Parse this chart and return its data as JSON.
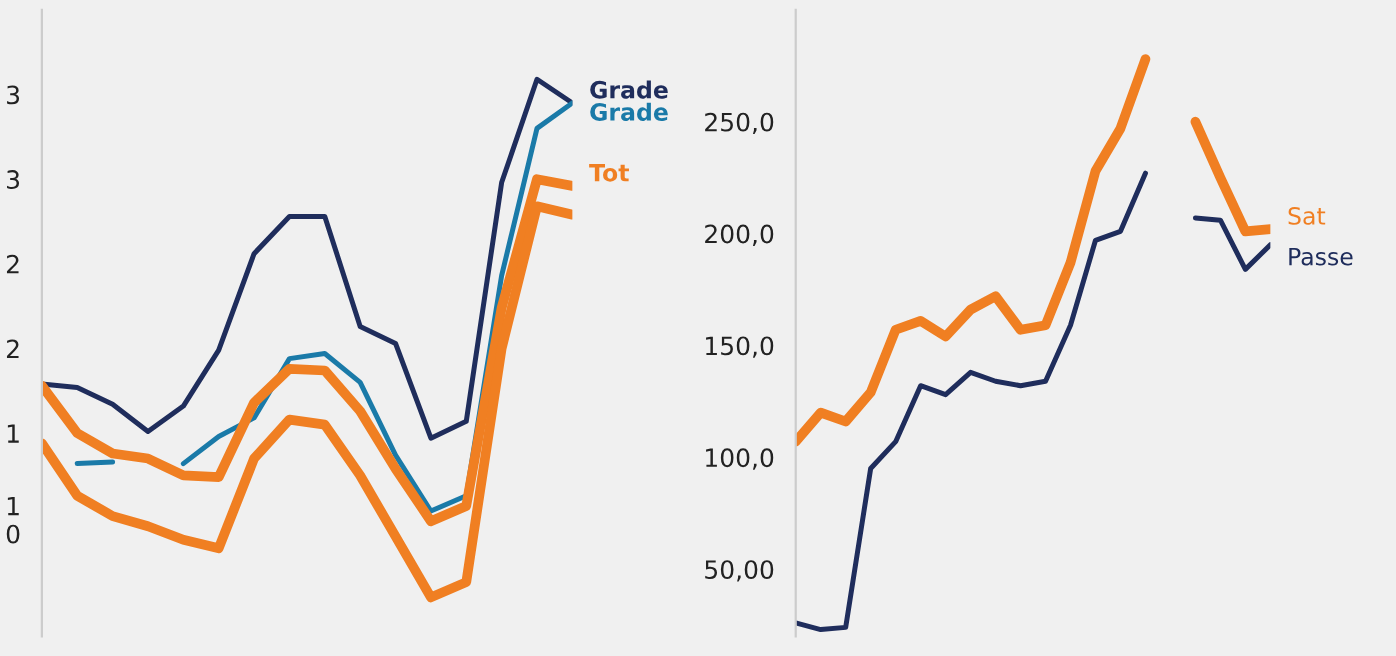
{
  "chart_data": [
    {
      "type": "line",
      "categories": [
        null,
        null,
        null,
        null,
        null,
        null,
        null,
        null,
        null,
        null,
        null,
        null,
        null,
        null,
        null,
        null
      ],
      "ylim": [
        0.3,
        4.0
      ],
      "yticks": [
        {
          "value": 3.5,
          "label": "3"
        },
        {
          "value": 3.0,
          "label": "3"
        },
        {
          "value": 2.5,
          "label": "2"
        },
        {
          "value": 2.0,
          "label": "2"
        },
        {
          "value": 1.5,
          "label": "1"
        },
        {
          "value": 1.0,
          "label": "1\n0"
        }
      ],
      "tick_labels": "y",
      "grid": false,
      "legend": false,
      "series": [
        {
          "name": "Grade",
          "color": "#1f2d5c",
          "values": [
            1.79,
            1.77,
            1.67,
            1.51,
            1.66,
            1.99,
            2.56,
            2.78,
            2.78,
            2.13,
            2.03,
            1.47,
            1.57,
            2.98,
            3.59,
            3.45
          ]
        },
        {
          "color": "#1a7aa8",
          "values": [
            null,
            1.32,
            1.33,
            null,
            null,
            null,
            null,
            null,
            null,
            null,
            null,
            null,
            null,
            null,
            null,
            null
          ]
        },
        {
          "name": "Grade",
          "color": "#1a7aa8",
          "values": [
            null,
            null,
            null,
            null,
            1.32,
            1.48,
            1.59,
            1.94,
            1.97,
            1.8,
            1.37,
            1.04,
            1.13,
            2.43,
            3.3,
            3.45
          ]
        },
        {
          "name": "Tot",
          "color": "#f07f22",
          "values": [
            1.78,
            1.5,
            1.38,
            1.35,
            1.25,
            1.24,
            1.68,
            1.88,
            1.87,
            1.63,
            1.29,
            0.98,
            1.07,
            2.24,
            3.0,
            2.96
          ]
        },
        {
          "color": "#f07f22",
          "values": [
            1.44,
            1.13,
            1.01,
            0.95,
            0.87,
            0.82,
            1.35,
            1.58,
            1.55,
            1.25,
            0.89,
            0.53,
            0.62,
            2.0,
            2.84,
            2.79
          ]
        }
      ]
    },
    {
      "type": "line",
      "categories": [
        null,
        null,
        null,
        null,
        null,
        null,
        null,
        null,
        null,
        null,
        null,
        null,
        null,
        null,
        null,
        null,
        null,
        null,
        null,
        null
      ],
      "ylim": [
        20,
        300
      ],
      "yticks": [
        {
          "value": 250,
          "label": "250,0"
        },
        {
          "value": 200,
          "label": "200,0"
        },
        {
          "value": 150,
          "label": "150,0"
        },
        {
          "value": 100,
          "label": "100,0"
        },
        {
          "value": 50,
          "label": "50,00"
        }
      ],
      "tick_labels": "y",
      "grid": false,
      "legend": false,
      "series": [
        {
          "color": "#f07f22",
          "values": [
            107,
            120,
            116,
            129,
            157,
            161,
            154,
            166,
            172,
            157,
            159,
            187,
            228,
            247,
            278,
            null,
            null,
            null,
            null,
            null
          ]
        },
        {
          "name": "Sat",
          "color": "#f07f22",
          "values": [
            null,
            null,
            null,
            null,
            null,
            null,
            null,
            null,
            null,
            null,
            null,
            null,
            null,
            null,
            null,
            null,
            250,
            225,
            201,
            202
          ]
        },
        {
          "color": "#1f2d5c",
          "values": [
            26,
            23,
            24,
            95,
            107,
            132,
            128,
            138,
            134,
            132,
            134,
            159,
            197,
            201,
            227,
            null,
            null,
            null,
            null,
            null
          ]
        },
        {
          "name": "Passe",
          "color": "#1f2d5c",
          "values": [
            null,
            null,
            null,
            null,
            null,
            null,
            null,
            null,
            null,
            null,
            null,
            null,
            null,
            null,
            null,
            null,
            207,
            206,
            184,
            195
          ]
        }
      ]
    }
  ]
}
